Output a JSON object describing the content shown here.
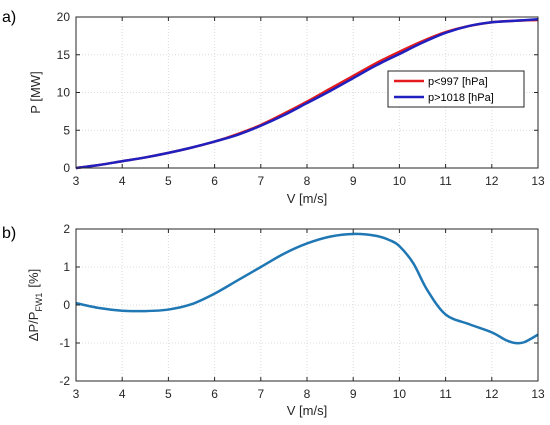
{
  "chart_data": [
    {
      "type": "line",
      "panel_label": "a)",
      "title": "",
      "xlabel": "V [m/s]",
      "ylabel": "P [MW]",
      "xlim": [
        3,
        13
      ],
      "ylim": [
        0,
        20
      ],
      "xticks": [
        3,
        4,
        5,
        6,
        7,
        8,
        9,
        10,
        11,
        12,
        13
      ],
      "yticks": [
        0,
        5,
        10,
        15,
        20
      ],
      "grid": true,
      "legend_position": "inside-right",
      "series": [
        {
          "name": "p<997 [hPa]",
          "color": "#e41a1c",
          "x": [
            3,
            3.5,
            4,
            4.5,
            5,
            5.5,
            6,
            6.5,
            7,
            7.5,
            8,
            8.5,
            9,
            9.5,
            10,
            10.5,
            11,
            11.5,
            12,
            12.5,
            13
          ],
          "y": [
            0,
            0.4,
            0.9,
            1.4,
            2.0,
            2.7,
            3.5,
            4.5,
            5.7,
            7.2,
            8.8,
            10.5,
            12.2,
            13.9,
            15.4,
            16.8,
            18.0,
            18.8,
            19.3,
            19.5,
            19.6
          ]
        },
        {
          "name": "p>1018 [hPa]",
          "color": "#2020c0",
          "x": [
            3,
            3.5,
            4,
            4.5,
            5,
            5.5,
            6,
            6.5,
            7,
            7.5,
            8,
            8.5,
            9,
            9.5,
            10,
            10.5,
            11,
            11.5,
            12,
            12.5,
            13
          ],
          "y": [
            0,
            0.4,
            0.9,
            1.4,
            2.0,
            2.7,
            3.5,
            4.4,
            5.6,
            7.0,
            8.6,
            10.2,
            11.9,
            13.6,
            15.1,
            16.6,
            17.9,
            18.8,
            19.3,
            19.5,
            19.7
          ]
        }
      ]
    },
    {
      "type": "line",
      "panel_label": "b)",
      "title": "",
      "xlabel": "V [m/s]",
      "ylabel_main": "ΔP/P",
      "ylabel_sub": "FW1",
      "ylabel_unit": "[%]",
      "xlim": [
        3,
        13
      ],
      "ylim": [
        -2,
        2
      ],
      "xticks": [
        3,
        4,
        5,
        6,
        7,
        8,
        9,
        10,
        11,
        12,
        13
      ],
      "yticks": [
        -2,
        -1,
        0,
        1,
        2
      ],
      "grid": true,
      "series": [
        {
          "color": "#1f77b4",
          "x": [
            3,
            3.5,
            4,
            4.5,
            5,
            5.5,
            6,
            6.5,
            7,
            7.5,
            8,
            8.5,
            9,
            9.5,
            9.8,
            10,
            10.3,
            10.6,
            11,
            11.5,
            12,
            12.3,
            12.5,
            12.7,
            13
          ],
          "y": [
            0.05,
            -0.08,
            -0.15,
            -0.16,
            -0.12,
            0.02,
            0.3,
            0.65,
            1.0,
            1.35,
            1.62,
            1.8,
            1.87,
            1.82,
            1.7,
            1.55,
            1.1,
            0.4,
            -0.25,
            -0.5,
            -0.72,
            -0.92,
            -1.0,
            -0.98,
            -0.78
          ]
        }
      ]
    }
  ]
}
